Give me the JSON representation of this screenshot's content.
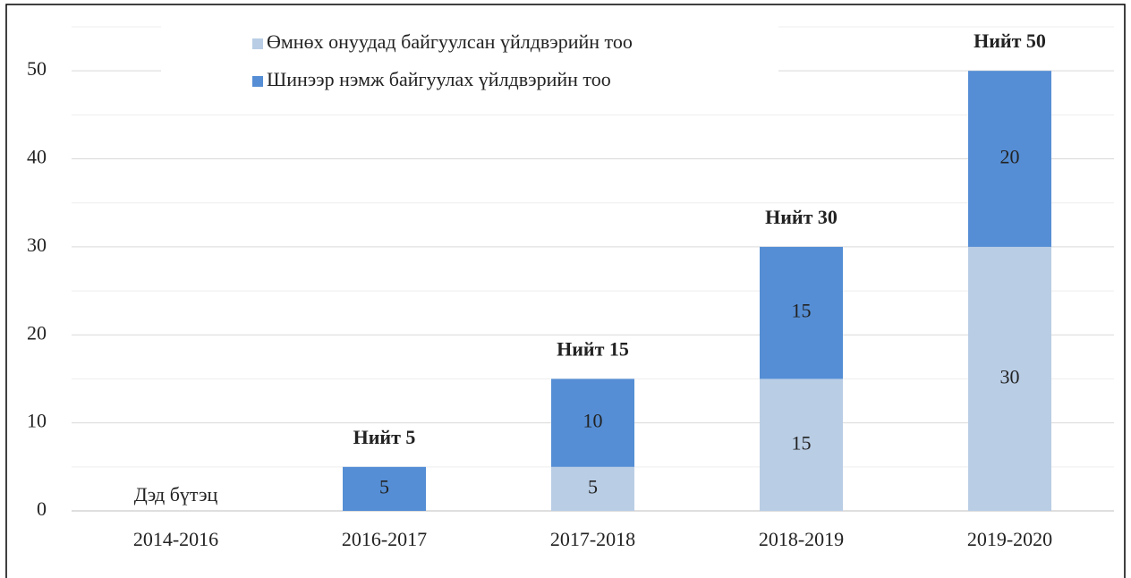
{
  "chart_data": {
    "type": "stacked_bar",
    "categories": [
      "2014-2016",
      "2016-2017",
      "2017-2018",
      "2018-2019",
      "2019-2020"
    ],
    "series": [
      {
        "name": "Өмнөх онуудад байгуулсан үйлдвэрийн тоо",
        "color": "#b9cde5",
        "values": [
          null,
          null,
          5,
          15,
          30
        ]
      },
      {
        "name": "Шинээр нэмж байгуулах үйлдвэрийн тоо",
        "color": "#558ed5",
        "values": [
          null,
          5,
          10,
          15,
          20
        ]
      }
    ],
    "total_labels": [
      null,
      "Нийт 5",
      "Нийт 15",
      "Нийт 30",
      "Нийт 50"
    ],
    "category_annotations": [
      "Дэд бүтэц",
      null,
      null,
      null,
      null
    ],
    "ylim": [
      0,
      55
    ],
    "yticks": [
      0,
      10,
      20,
      30,
      40,
      50
    ],
    "minor_yticks": [
      5,
      15,
      25,
      35,
      45,
      55
    ],
    "grid": true,
    "legend": "top"
  }
}
